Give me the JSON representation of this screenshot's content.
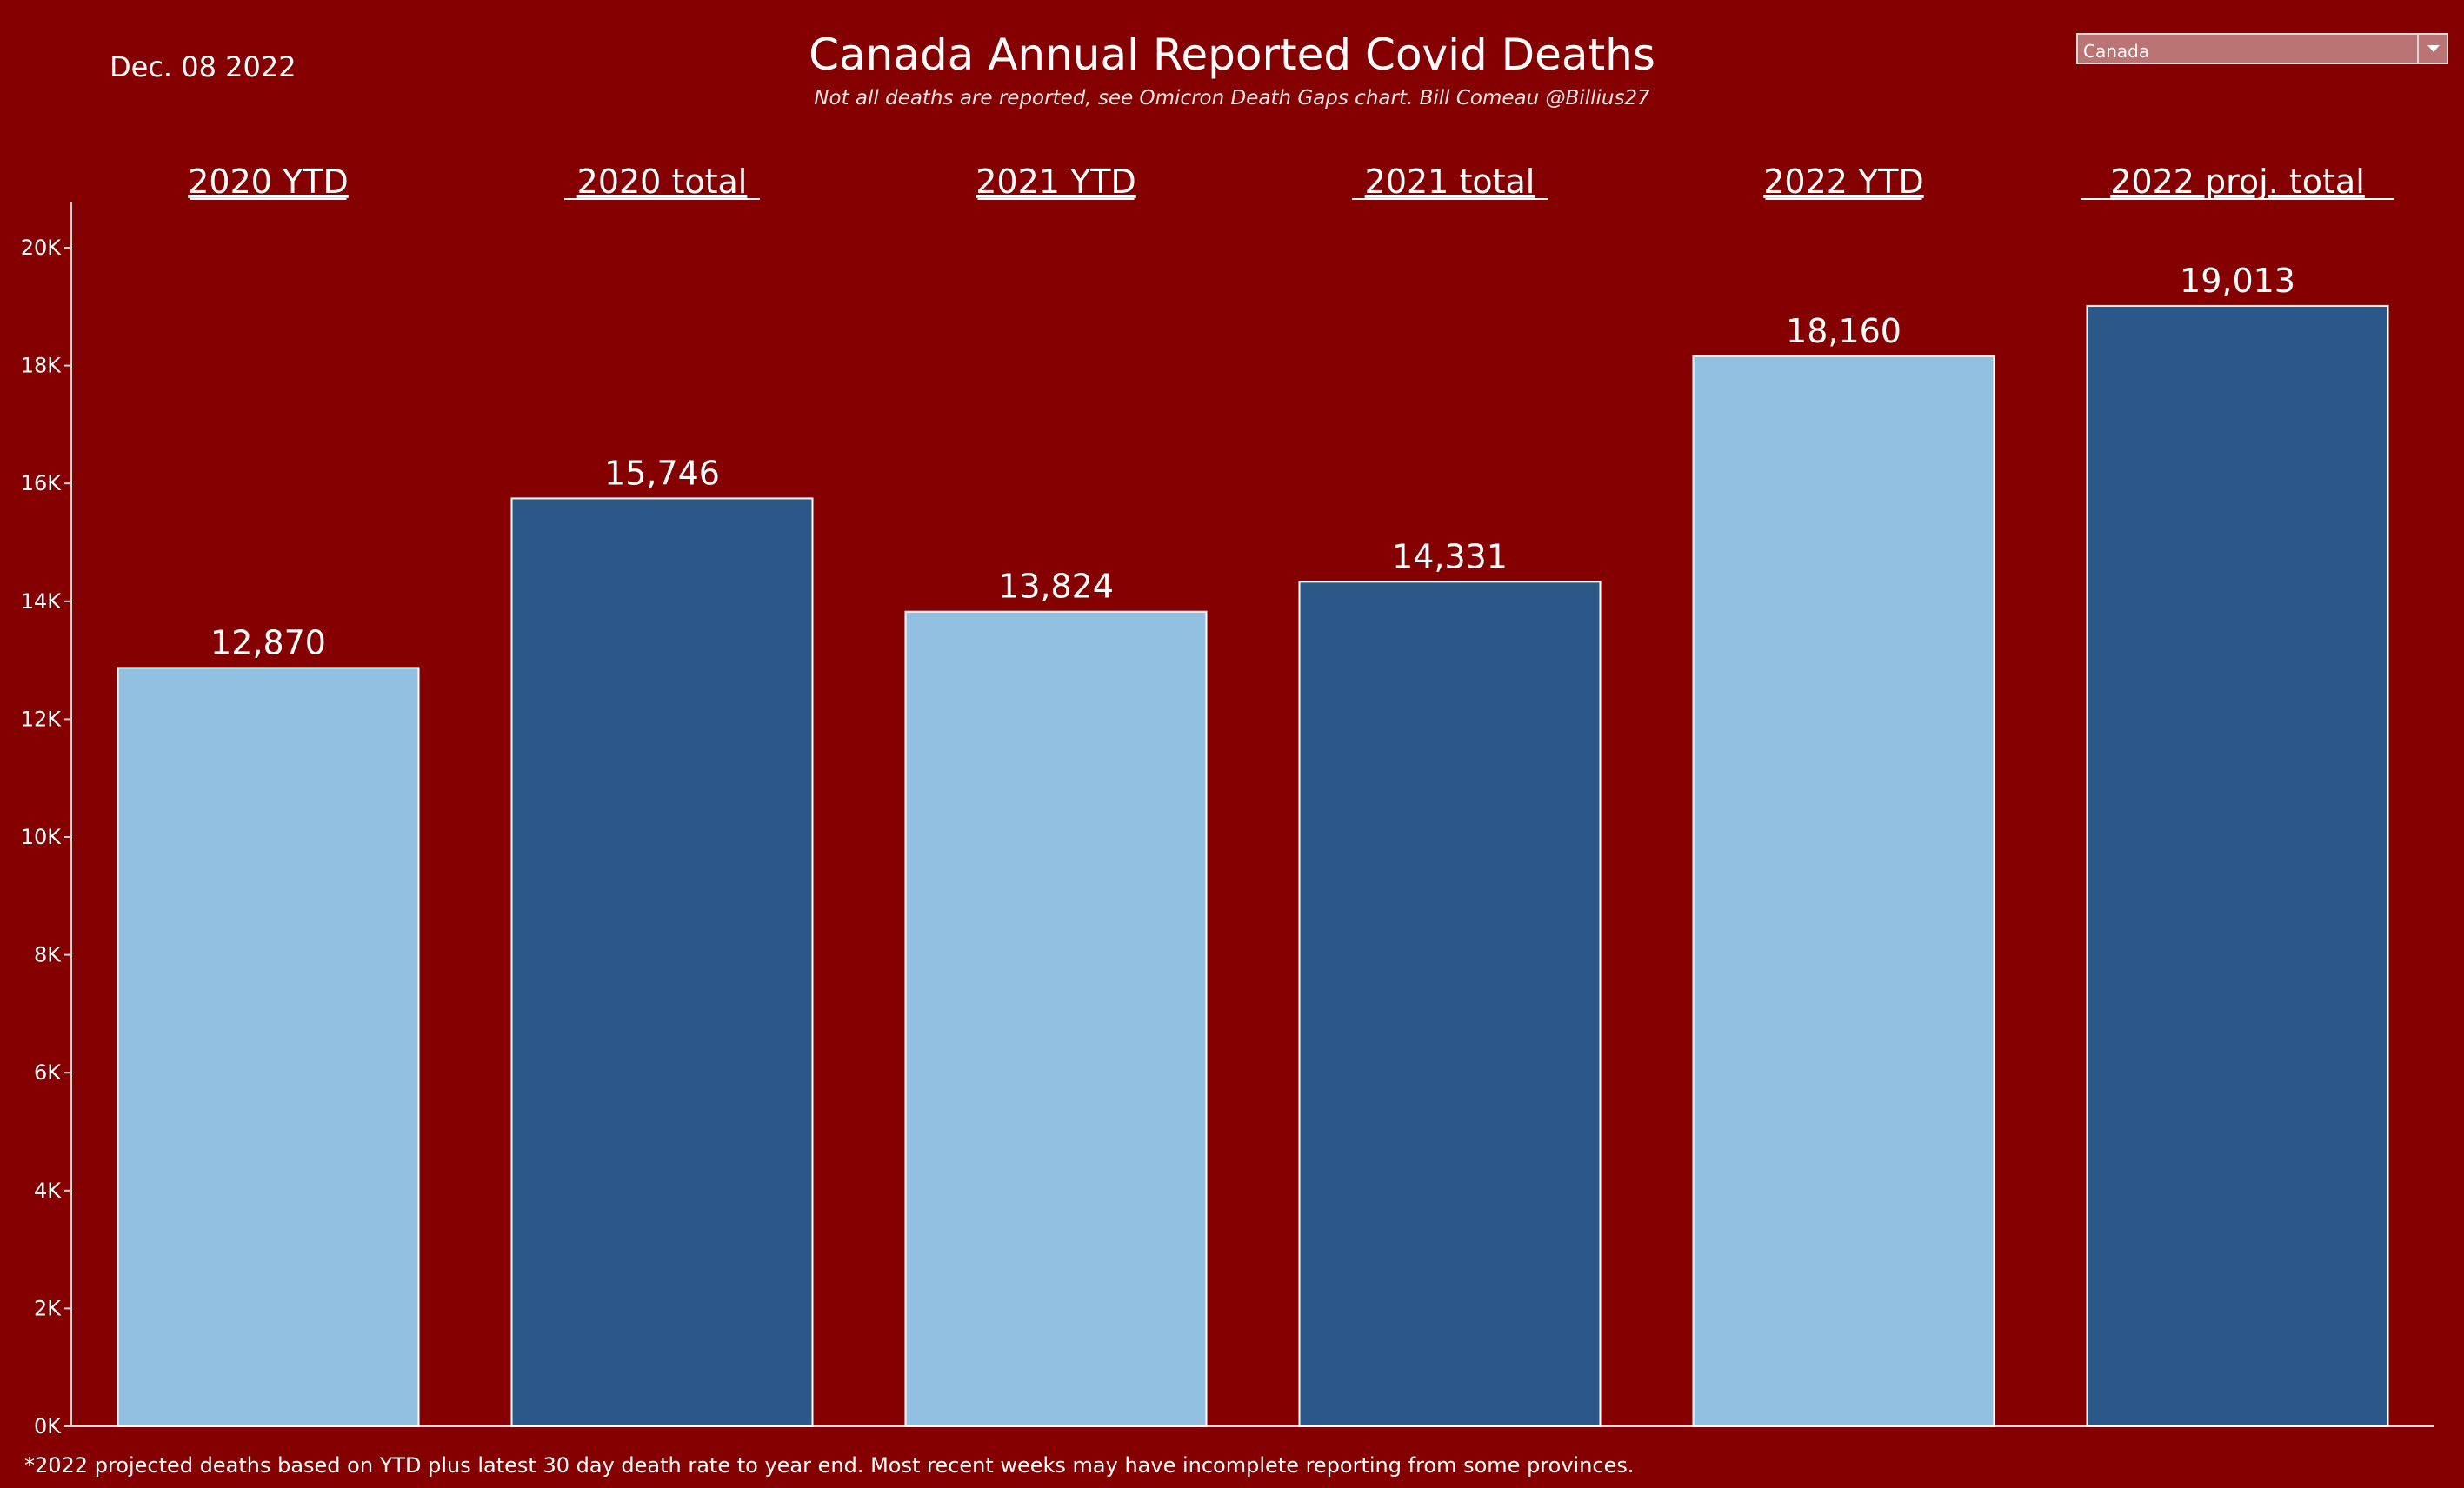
{
  "date": "Dec. 08 2022",
  "title": "Canada  Annual Reported Covid Deaths",
  "subtitle": "Not all deaths are reported, see Omicron Death Gaps chart. Bill Comeau @Billius27",
  "region_filter": {
    "selected": "Canada"
  },
  "footnote": "*2022 projected deaths based on YTD plus latest 30 day death rate to year end. Most recent weeks may have incomplete reporting from some provinces.",
  "colors": {
    "background": "#850000",
    "light_bar": "#91c0e0",
    "dark_bar": "#2c5889",
    "text": "#ffffff"
  },
  "chart_data": {
    "type": "bar",
    "categories": [
      "2020 YTD",
      "2020 total",
      "2021 YTD",
      "2021 total",
      "2022 YTD",
      "2022 proj. total"
    ],
    "values": [
      12870,
      15746,
      13824,
      14331,
      18160,
      19013
    ],
    "value_labels": [
      "12,870",
      "15,746",
      "13,824",
      "14,331",
      "18,160",
      "19,013"
    ],
    "bar_colors": [
      "#91c0e0",
      "#2c5889",
      "#91c0e0",
      "#2c5889",
      "#91c0e0",
      "#2c5889"
    ],
    "ylim": [
      0,
      20000
    ],
    "yticks": [
      0,
      2000,
      4000,
      6000,
      8000,
      10000,
      12000,
      14000,
      16000,
      18000,
      20000
    ],
    "ytick_labels": [
      "0K",
      "2K",
      "4K",
      "6K",
      "8K",
      "10K",
      "12K",
      "14K",
      "16K",
      "18K",
      "20K"
    ],
    "category_position": "top",
    "grid": false,
    "legend": false
  }
}
